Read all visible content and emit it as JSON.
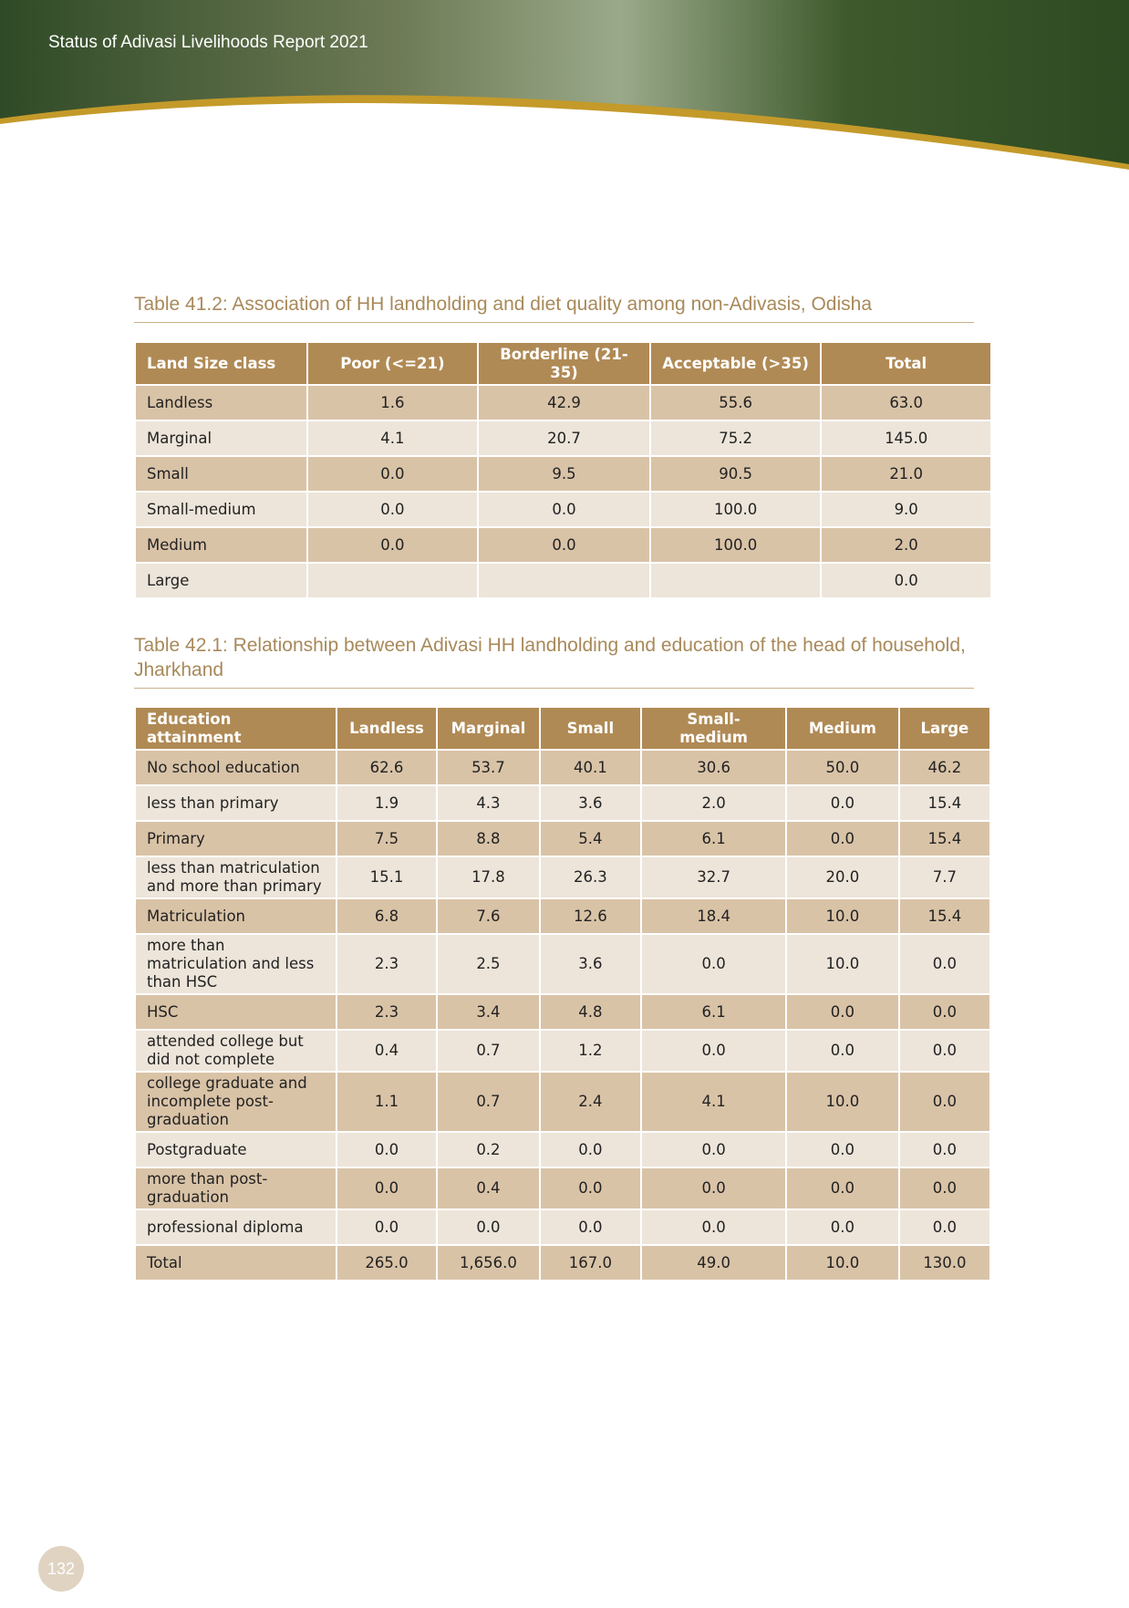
{
  "header": {
    "title": "Status of Adivasi Livelihoods Report 2021"
  },
  "tables": [
    {
      "title": "Table 41.2: Association of HH landholding and diet quality among non-Adivasis, Odisha",
      "columns": [
        "Land Size class",
        "Poor (<=21)",
        "Borderline (21-35)",
        "Acceptable (>35)",
        "Total"
      ],
      "rows": [
        [
          "Landless",
          "1.6",
          "42.9",
          "55.6",
          "63.0"
        ],
        [
          "Marginal",
          "4.1",
          "20.7",
          "75.2",
          "145.0"
        ],
        [
          "Small",
          "0.0",
          "9.5",
          "90.5",
          "21.0"
        ],
        [
          "Small-medium",
          "0.0",
          "0.0",
          "100.0",
          "9.0"
        ],
        [
          "Medium",
          "0.0",
          "0.0",
          "100.0",
          "2.0"
        ],
        [
          "Large",
          null,
          null,
          null,
          "0.0"
        ]
      ]
    },
    {
      "title": "Table 42.1: Relationship between Adivasi HH landholding and education of the head of household, Jharkhand",
      "columns": [
        "Education attainment",
        "Landless",
        "Marginal",
        "Small",
        "Small-medium",
        "Medium",
        "Large"
      ],
      "rows": [
        [
          "No school education",
          "62.6",
          "53.7",
          "40.1",
          "30.6",
          "50.0",
          "46.2"
        ],
        [
          "less than primary",
          "1.9",
          "4.3",
          "3.6",
          "2.0",
          "0.0",
          "15.4"
        ],
        [
          "Primary",
          "7.5",
          "8.8",
          "5.4",
          "6.1",
          "0.0",
          "15.4"
        ],
        [
          "less than matriculation and more than primary",
          "15.1",
          "17.8",
          "26.3",
          "32.7",
          "20.0",
          "7.7"
        ],
        [
          "Matriculation",
          "6.8",
          "7.6",
          "12.6",
          "18.4",
          "10.0",
          "15.4"
        ],
        [
          "more than matriculation and less than HSC",
          "2.3",
          "2.5",
          "3.6",
          "0.0",
          "10.0",
          "0.0"
        ],
        [
          "HSC",
          "2.3",
          "3.4",
          "4.8",
          "6.1",
          "0.0",
          "0.0"
        ],
        [
          "attended college but did not complete",
          "0.4",
          "0.7",
          "1.2",
          "0.0",
          "0.0",
          "0.0"
        ],
        [
          "college graduate and incomplete post-graduation",
          "1.1",
          "0.7",
          "2.4",
          "4.1",
          "10.0",
          "0.0"
        ],
        [
          "Postgraduate",
          "0.0",
          "0.2",
          "0.0",
          "0.0",
          "0.0",
          "0.0"
        ],
        [
          "more than post-graduation",
          "0.0",
          "0.4",
          "0.0",
          "0.0",
          "0.0",
          "0.0"
        ],
        [
          "professional diploma",
          "0.0",
          "0.0",
          "0.0",
          "0.0",
          "0.0",
          "0.0"
        ],
        [
          "Total",
          "265.0",
          "1,656.0",
          "167.0",
          "49.0",
          "10.0",
          "130.0"
        ]
      ]
    }
  ],
  "page_number": "132"
}
